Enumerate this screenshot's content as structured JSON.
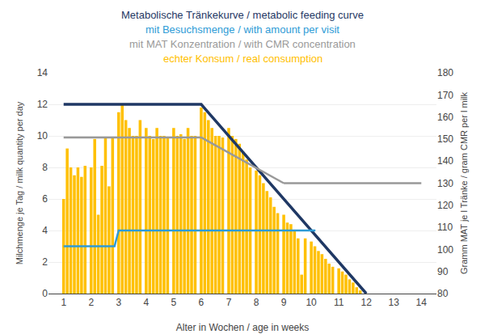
{
  "chart_data": {
    "type": "bar",
    "xlabel": "Alter in Wochen / age in weeks",
    "ylabel": "Milchmenge je Tag / milk quantity per day",
    "y2label": "Gramm MAT je l Tränke / gram CMR per l milk",
    "xlim": [
      0.45,
      14.55
    ],
    "xticks": [
      1,
      2,
      3,
      4,
      5,
      6,
      7,
      8,
      9,
      10,
      11,
      12,
      13,
      14
    ],
    "ylim": [
      0,
      14
    ],
    "yticks": [
      0,
      2,
      4,
      6,
      8,
      10,
      12,
      14
    ],
    "y2lim": [
      80,
      180
    ],
    "y2ticks": [
      80,
      90,
      100,
      110,
      120,
      130,
      140,
      150,
      160,
      170,
      180
    ],
    "grid": true,
    "series": [
      {
        "name": "Metabolische Tränkekurve / metabolic feeding curve",
        "type": "line",
        "color": "#1f3864",
        "x": [
          1,
          6,
          12
        ],
        "values": [
          12,
          12,
          0
        ]
      },
      {
        "name": "mit Besuchsmenge / with amount per visit",
        "type": "line",
        "color": "#2e9bd6",
        "x": [
          1.0,
          1.85,
          2.0,
          2.85,
          3.0,
          10.0,
          10.15
        ],
        "values": [
          3.0,
          3.0,
          3.0,
          3.0,
          4.0,
          4.0,
          4.0
        ]
      },
      {
        "name": "mit MAT Konzentration / with CMR concentration",
        "type": "line",
        "color": "#999999",
        "x": [
          1.0,
          6.0,
          null,
          6.0,
          9.0,
          null,
          9.0,
          14.0
        ],
        "values": [
          9.9,
          9.9,
          null,
          9.9,
          7.0,
          null,
          7.0,
          7.0
        ]
      },
      {
        "name": "echter Konsum / real consumption",
        "type": "bar",
        "color": "#FFC000",
        "x": [
          1.0,
          1.13,
          1.26,
          1.39,
          1.52,
          1.65,
          1.78,
          2.0,
          2.13,
          2.26,
          2.39,
          2.52,
          2.65,
          2.78,
          3.0,
          3.13,
          3.26,
          3.39,
          3.52,
          3.65,
          3.78,
          4.0,
          4.13,
          4.26,
          4.39,
          4.52,
          4.65,
          4.78,
          5.0,
          5.13,
          5.26,
          5.39,
          5.52,
          5.65,
          5.78,
          6.0,
          6.13,
          6.26,
          6.39,
          6.52,
          6.65,
          6.78,
          7.0,
          7.13,
          7.26,
          7.39,
          7.52,
          7.65,
          7.78,
          8.0,
          8.13,
          8.26,
          8.39,
          8.52,
          8.65,
          8.78,
          9.0,
          9.13,
          9.26,
          9.39,
          9.52,
          9.65,
          9.78,
          10.0,
          10.13,
          10.26,
          10.39,
          10.52,
          10.65,
          10.78,
          11.0,
          11.13,
          11.26,
          11.39,
          11.52,
          11.65,
          11.78
        ],
        "values": [
          6.0,
          9.2,
          8.0,
          7.5,
          8.0,
          7.4,
          8.1,
          8.0,
          9.8,
          5.0,
          8.1,
          9.9,
          6.8,
          9.9,
          11.5,
          12.0,
          11.0,
          10.5,
          10.0,
          10.0,
          11.0,
          10.5,
          10.0,
          9.8,
          10.5,
          10.0,
          10.0,
          9.9,
          10.5,
          10.0,
          10.1,
          9.8,
          10.5,
          10.0,
          10.0,
          11.8,
          11.5,
          11.0,
          10.5,
          10.0,
          10.0,
          9.9,
          10.5,
          10.0,
          9.8,
          9.5,
          9.0,
          8.5,
          8.0,
          7.8,
          7.5,
          7.0,
          6.5,
          6.1,
          5.5,
          5.1,
          5.0,
          4.5,
          4.4,
          4.0,
          3.5,
          1.2,
          3.5,
          3.3,
          3.0,
          2.7,
          2.5,
          2.2,
          1.9,
          1.7,
          1.6,
          1.4,
          1.2,
          0.9,
          0.7,
          0.4,
          0.2
        ]
      }
    ]
  }
}
